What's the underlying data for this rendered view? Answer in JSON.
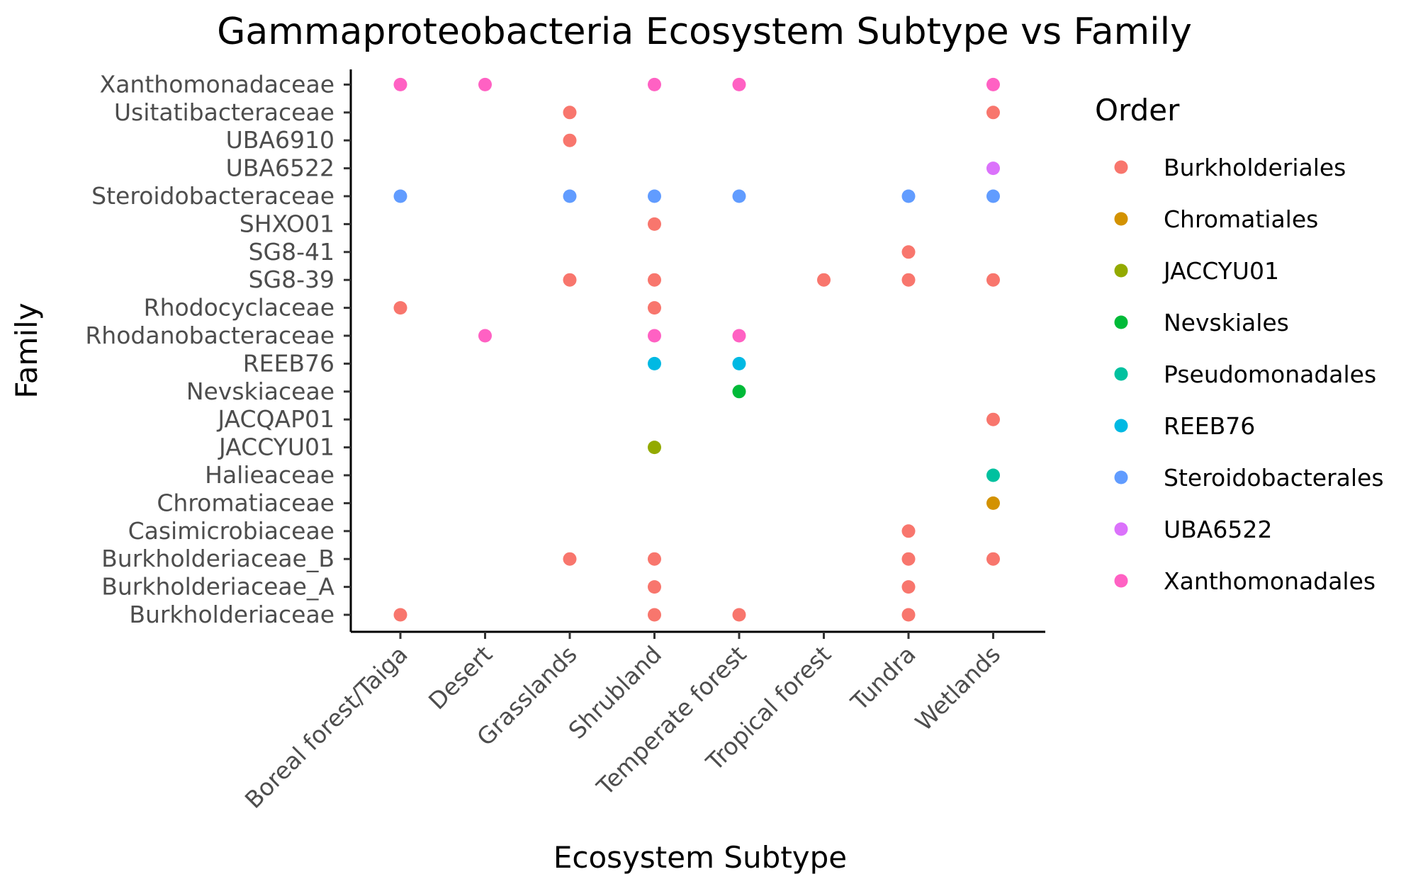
{
  "chart_data": {
    "type": "scatter",
    "title": "Gammaproteobacteria Ecosystem Subtype vs Family",
    "xlabel": "Ecosystem Subtype",
    "ylabel": "Family",
    "x_categories": [
      "Boreal forest/Taiga",
      "Desert",
      "Grasslands",
      "Shrubland",
      "Temperate forest",
      "Tropical forest",
      "Tundra",
      "Wetlands"
    ],
    "y_categories": [
      "Burkholderiaceae",
      "Burkholderiaceae_A",
      "Burkholderiaceae_B",
      "Casimicrobiaceae",
      "Chromatiaceae",
      "Halieaceae",
      "JACCYU01",
      "JACQAP01",
      "Nevskiaceae",
      "REEB76",
      "Rhodanobacteraceae",
      "Rhodocyclaceae",
      "SG8-39",
      "SG8-41",
      "SHXO01",
      "Steroidobacteraceae",
      "UBA6522",
      "UBA6910",
      "Usitatibacteraceae",
      "Xanthomonadaceae"
    ],
    "legend_title": "Order",
    "legend_position": "right",
    "grid": false,
    "series": [
      {
        "name": "Burkholderiales",
        "color": "#F8766D",
        "points": [
          [
            "Grasslands",
            "Usitatibacteraceae"
          ],
          [
            "Wetlands",
            "Usitatibacteraceae"
          ],
          [
            "Grasslands",
            "UBA6910"
          ],
          [
            "Shrubland",
            "SHXO01"
          ],
          [
            "Tundra",
            "SG8-41"
          ],
          [
            "Grasslands",
            "SG8-39"
          ],
          [
            "Shrubland",
            "SG8-39"
          ],
          [
            "Tropical forest",
            "SG8-39"
          ],
          [
            "Tundra",
            "SG8-39"
          ],
          [
            "Wetlands",
            "SG8-39"
          ],
          [
            "Boreal forest/Taiga",
            "Rhodocyclaceae"
          ],
          [
            "Shrubland",
            "Rhodocyclaceae"
          ],
          [
            "Wetlands",
            "JACQAP01"
          ],
          [
            "Tundra",
            "Casimicrobiaceae"
          ],
          [
            "Grasslands",
            "Burkholderiaceae_B"
          ],
          [
            "Shrubland",
            "Burkholderiaceae_B"
          ],
          [
            "Tundra",
            "Burkholderiaceae_B"
          ],
          [
            "Wetlands",
            "Burkholderiaceae_B"
          ],
          [
            "Shrubland",
            "Burkholderiaceae_A"
          ],
          [
            "Tundra",
            "Burkholderiaceae_A"
          ],
          [
            "Boreal forest/Taiga",
            "Burkholderiaceae"
          ],
          [
            "Shrubland",
            "Burkholderiaceae"
          ],
          [
            "Temperate forest",
            "Burkholderiaceae"
          ],
          [
            "Tundra",
            "Burkholderiaceae"
          ]
        ]
      },
      {
        "name": "Chromatiales",
        "color": "#D39200",
        "points": [
          [
            "Wetlands",
            "Chromatiaceae"
          ]
        ]
      },
      {
        "name": "JACCYU01",
        "color": "#93AA00",
        "points": [
          [
            "Shrubland",
            "JACCYU01"
          ]
        ]
      },
      {
        "name": "Nevskiales",
        "color": "#00BA38",
        "points": [
          [
            "Temperate forest",
            "Nevskiaceae"
          ]
        ]
      },
      {
        "name": "Pseudomonadales",
        "color": "#00C19F",
        "points": [
          [
            "Wetlands",
            "Halieaceae"
          ]
        ]
      },
      {
        "name": "REEB76",
        "color": "#00B9E3",
        "points": [
          [
            "Shrubland",
            "REEB76"
          ],
          [
            "Temperate forest",
            "REEB76"
          ]
        ]
      },
      {
        "name": "Steroidobacterales",
        "color": "#619CFF",
        "points": [
          [
            "Boreal forest/Taiga",
            "Steroidobacteraceae"
          ],
          [
            "Grasslands",
            "Steroidobacteraceae"
          ],
          [
            "Shrubland",
            "Steroidobacteraceae"
          ],
          [
            "Temperate forest",
            "Steroidobacteraceae"
          ],
          [
            "Tundra",
            "Steroidobacteraceae"
          ],
          [
            "Wetlands",
            "Steroidobacteraceae"
          ]
        ]
      },
      {
        "name": "UBA6522",
        "color": "#DB72FB",
        "points": [
          [
            "Wetlands",
            "UBA6522"
          ]
        ]
      },
      {
        "name": "Xanthomonadales",
        "color": "#FF61C3",
        "points": [
          [
            "Boreal forest/Taiga",
            "Xanthomonadaceae"
          ],
          [
            "Desert",
            "Xanthomonadaceae"
          ],
          [
            "Shrubland",
            "Xanthomonadaceae"
          ],
          [
            "Temperate forest",
            "Xanthomonadaceae"
          ],
          [
            "Wetlands",
            "Xanthomonadaceae"
          ],
          [
            "Desert",
            "Rhodanobacteraceae"
          ],
          [
            "Shrubland",
            "Rhodanobacteraceae"
          ],
          [
            "Temperate forest",
            "Rhodanobacteraceae"
          ]
        ]
      }
    ]
  }
}
